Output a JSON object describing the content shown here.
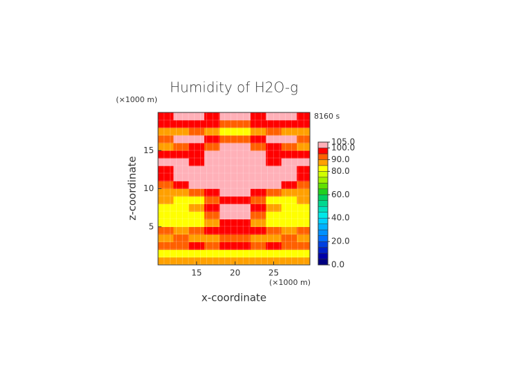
{
  "chart_data": {
    "type": "contour",
    "title": "Humidity of H2O-g",
    "time_label": "8160 s",
    "x_unit": "(×1000 m)",
    "y_unit": "(×1000 m)",
    "xlabel": "x-coordinate",
    "ylabel": "z-coordinate",
    "xlim": [
      10,
      29.7
    ],
    "ylim": [
      0,
      20
    ],
    "xticks": [
      15,
      20,
      25
    ],
    "yticks": [
      5,
      10,
      15
    ],
    "x": [
      11,
      13,
      15,
      17,
      19,
      21,
      23,
      25,
      27,
      29
    ],
    "y": [
      0.5,
      1.5,
      2.5,
      3.5,
      4.5,
      5.5,
      6.5,
      7.5,
      8.5,
      9.5,
      10.5,
      11.5,
      12.5,
      13.5,
      14.5,
      15.5,
      16.5,
      17.5,
      18.5,
      19.5
    ],
    "z": [
      [
        88,
        88,
        85,
        85,
        88,
        88,
        85,
        85,
        88,
        88
      ],
      [
        82,
        82,
        82,
        82,
        82,
        82,
        82,
        82,
        82,
        82
      ],
      [
        92,
        92,
        96,
        92,
        96,
        96,
        92,
        96,
        92,
        92
      ],
      [
        88,
        92,
        88,
        88,
        92,
        92,
        88,
        88,
        92,
        88
      ],
      [
        92,
        88,
        92,
        96,
        96,
        96,
        96,
        92,
        88,
        92
      ],
      [
        82,
        82,
        82,
        88,
        96,
        96,
        88,
        82,
        82,
        82
      ],
      [
        82,
        82,
        82,
        92,
        102,
        102,
        92,
        82,
        82,
        82
      ],
      [
        82,
        82,
        88,
        96,
        102,
        102,
        96,
        88,
        82,
        82
      ],
      [
        88,
        82,
        82,
        92,
        96,
        96,
        92,
        82,
        82,
        88
      ],
      [
        88,
        88,
        92,
        96,
        102,
        102,
        96,
        92,
        88,
        88
      ],
      [
        92,
        96,
        102,
        102,
        102,
        102,
        102,
        102,
        96,
        92
      ],
      [
        96,
        102,
        102,
        102,
        102,
        102,
        102,
        102,
        102,
        96
      ],
      [
        96,
        102,
        102,
        102,
        102,
        102,
        102,
        102,
        102,
        96
      ],
      [
        102,
        102,
        96,
        102,
        102,
        102,
        102,
        96,
        102,
        102
      ],
      [
        96,
        96,
        96,
        102,
        102,
        102,
        102,
        96,
        96,
        96
      ],
      [
        88,
        92,
        96,
        92,
        102,
        102,
        92,
        96,
        92,
        88
      ],
      [
        92,
        102,
        102,
        96,
        92,
        92,
        96,
        102,
        102,
        92
      ],
      [
        88,
        88,
        92,
        88,
        82,
        82,
        88,
        92,
        88,
        88
      ],
      [
        96,
        96,
        96,
        96,
        92,
        92,
        96,
        96,
        96,
        96
      ],
      [
        96,
        102,
        102,
        96,
        102,
        102,
        96,
        102,
        102,
        96
      ]
    ],
    "levels": [
      0,
      5,
      10,
      15,
      20,
      25,
      30,
      35,
      40,
      45,
      50,
      55,
      60,
      65,
      70,
      75,
      80,
      85,
      90,
      95,
      100,
      105
    ],
    "colors": [
      "#000080",
      "#0000a8",
      "#0020c8",
      "#0040e0",
      "#0070ff",
      "#0090ff",
      "#00b0ff",
      "#00d0ff",
      "#00e8e8",
      "#00e0c0",
      "#00d890",
      "#00d060",
      "#20d020",
      "#60e000",
      "#a0f000",
      "#d0ff00",
      "#ffff00",
      "#ffa000",
      "#ff6000",
      "#ff0000",
      "#ffb0b8"
    ],
    "colorbar_ticks": [
      {
        "value": 0,
        "label": "0.0"
      },
      {
        "value": 20,
        "label": "20.0"
      },
      {
        "value": 40,
        "label": "40.0"
      },
      {
        "value": 60,
        "label": "60.0"
      },
      {
        "value": 80,
        "label": "80.0"
      },
      {
        "value": 90,
        "label": "90.0"
      },
      {
        "value": 100,
        "label": "100.0"
      },
      {
        "value": 105,
        "label": "105.0"
      }
    ]
  }
}
